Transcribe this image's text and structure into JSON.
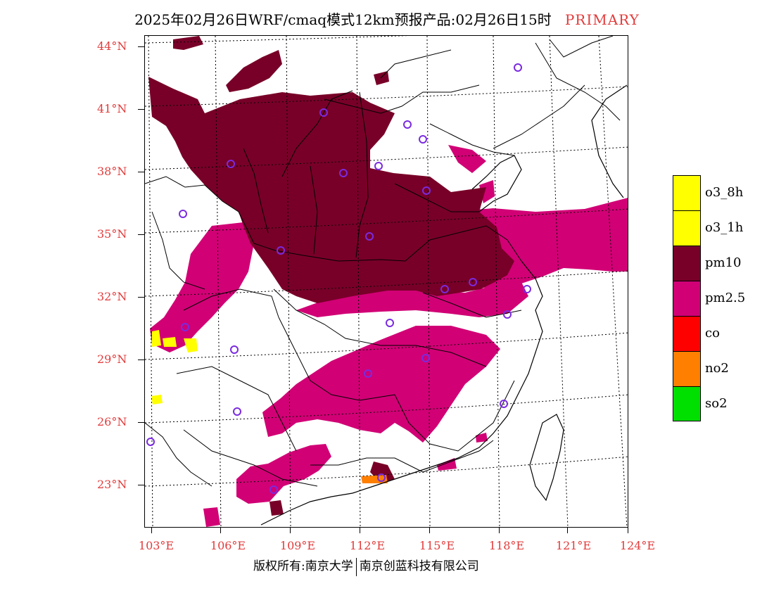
{
  "title": {
    "text": "2025年02月26日WRF/cmaq模式12km预报产品:02月26日15时",
    "tag": "PRIMARY"
  },
  "axes": {
    "lat_labels": [
      "44°N",
      "41°N",
      "38°N",
      "35°N",
      "32°N",
      "29°N",
      "26°N",
      "23°N"
    ],
    "lon_labels": [
      "103°E",
      "106°E",
      "109°E",
      "112°E",
      "115°E",
      "118°E",
      "121°E",
      "124°E"
    ]
  },
  "legend": [
    {
      "label": "o3_8h",
      "color": "#ffff00"
    },
    {
      "label": "o3_1h",
      "color": "#ffff00"
    },
    {
      "label": "pm10",
      "color": "#780028"
    },
    {
      "label": "pm2.5",
      "color": "#d10075"
    },
    {
      "label": "co",
      "color": "#ff0000"
    },
    {
      "label": "no2",
      "color": "#ff7f00"
    },
    {
      "label": "so2",
      "color": "#00e000"
    }
  ],
  "footer": {
    "left": "版权所有:南京大学",
    "right": "南京创蓝科技有限公司"
  },
  "colors": {
    "pm10": "#780028",
    "pm25": "#d10075",
    "o3": "#ffff00",
    "no2": "#ff7f00",
    "station_marker": "#7a2be0",
    "axis_label": "#e23b3b"
  }
}
